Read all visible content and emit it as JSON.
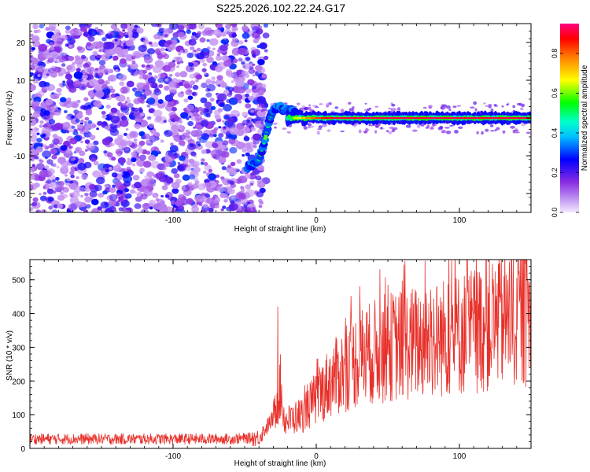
{
  "title": "S225.2026.102.22.24.G17",
  "chart_data": [
    {
      "type": "heatmap",
      "panel": "spectrogram",
      "xlabel": "Height of straight line (km)",
      "ylabel": "Frequency (Hz)",
      "xlim": [
        -200,
        150
      ],
      "ylim": [
        -25,
        25
      ],
      "xticks": [
        -100,
        0,
        100
      ],
      "yticks": [
        20,
        10,
        0,
        -10,
        -20
      ],
      "colorbar": {
        "label": "Normalized spectral amplitude",
        "range": [
          0,
          0.95
        ],
        "ticks": [
          0,
          0.2,
          0.4,
          0.6,
          0.8
        ],
        "colormap": [
          "#f4e8ff",
          "#8a2be2",
          "#0000ff",
          "#00e5ff",
          "#00ff00",
          "#ffff00",
          "#ff8000",
          "#ff0000",
          "#ff0080"
        ]
      },
      "features": {
        "noise_region_x": [
          -200,
          -45
        ],
        "noise_amplitude": [
          0.05,
          0.25
        ],
        "transition_track": [
          [
            -48,
            -13
          ],
          [
            -44,
            -12
          ],
          [
            -40,
            -11
          ],
          [
            -36,
            -6
          ],
          [
            -33,
            -1
          ],
          [
            -30,
            2
          ],
          [
            -26,
            3
          ],
          [
            -22,
            2
          ],
          [
            -18,
            2
          ],
          [
            -14,
            1
          ]
        ],
        "steady_line_x": [
          -20,
          150
        ],
        "steady_line_freq": 0,
        "steady_line_amplitude": 0.9
      }
    },
    {
      "type": "line",
      "panel": "snr",
      "xlabel": "Height of straight line (km)",
      "ylabel": "SNR (10 * v/v)",
      "xlim": [
        -200,
        150
      ],
      "ylim": [
        0,
        560
      ],
      "xticks": [
        -100,
        0,
        100
      ],
      "yticks": [
        0,
        100,
        200,
        300,
        400,
        500
      ],
      "color": "#e8302a",
      "trend": [
        [
          -200,
          28
        ],
        [
          -60,
          28
        ],
        [
          -40,
          32
        ],
        [
          -30,
          90
        ],
        [
          -25,
          180
        ],
        [
          -22,
          80
        ],
        [
          -10,
          100
        ],
        [
          10,
          200
        ],
        [
          30,
          270
        ],
        [
          50,
          300
        ],
        [
          80,
          320
        ],
        [
          110,
          350
        ],
        [
          130,
          380
        ],
        [
          150,
          395
        ]
      ],
      "spikes": [
        [
          -27,
          420
        ],
        [
          62,
          555
        ],
        [
          127,
          545
        ],
        [
          115,
          500
        ],
        [
          140,
          505
        ]
      ]
    }
  ]
}
